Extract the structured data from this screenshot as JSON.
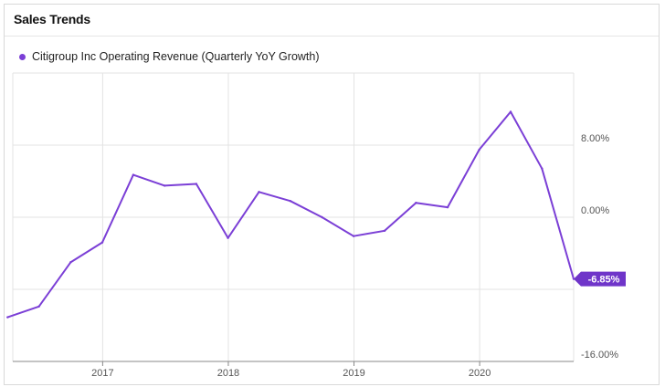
{
  "header": {
    "title": "Sales Trends"
  },
  "colors": {
    "series": "#7b3fd6",
    "badge": "#6f35c9",
    "grid": "#e3e3e3"
  },
  "chart_data": {
    "type": "line",
    "title": "",
    "xlabel": "",
    "ylabel": "",
    "ylim": [
      -16,
      16
    ],
    "yticks": [
      {
        "value": 8,
        "label": "8.00%"
      },
      {
        "value": 0,
        "label": "0.00%"
      },
      {
        "value": -16,
        "label": "-16.00%"
      }
    ],
    "xticks": [
      "2017",
      "2018",
      "2019",
      "2020"
    ],
    "legend_position": "top-left",
    "grid": true,
    "series": [
      {
        "name": "Citigroup Inc Operating Revenue (Quarterly YoY Growth)",
        "x": [
          "2016-03-31",
          "2016-06-30",
          "2016-09-30",
          "2016-12-31",
          "2017-03-31",
          "2017-06-30",
          "2017-09-30",
          "2017-12-31",
          "2018-03-31",
          "2018-06-30",
          "2018-09-30",
          "2018-12-31",
          "2019-03-31",
          "2019-06-30",
          "2019-09-30",
          "2019-12-31",
          "2020-03-31",
          "2020-06-30",
          "2020-09-30"
        ],
        "values": [
          -11.1,
          -9.9,
          -5.0,
          -2.8,
          4.7,
          3.5,
          3.7,
          -2.3,
          2.8,
          1.8,
          0.0,
          -2.1,
          -1.5,
          1.6,
          1.1,
          7.5,
          11.7,
          5.4,
          -6.85
        ],
        "last_value_label": "-6.85%"
      }
    ]
  }
}
